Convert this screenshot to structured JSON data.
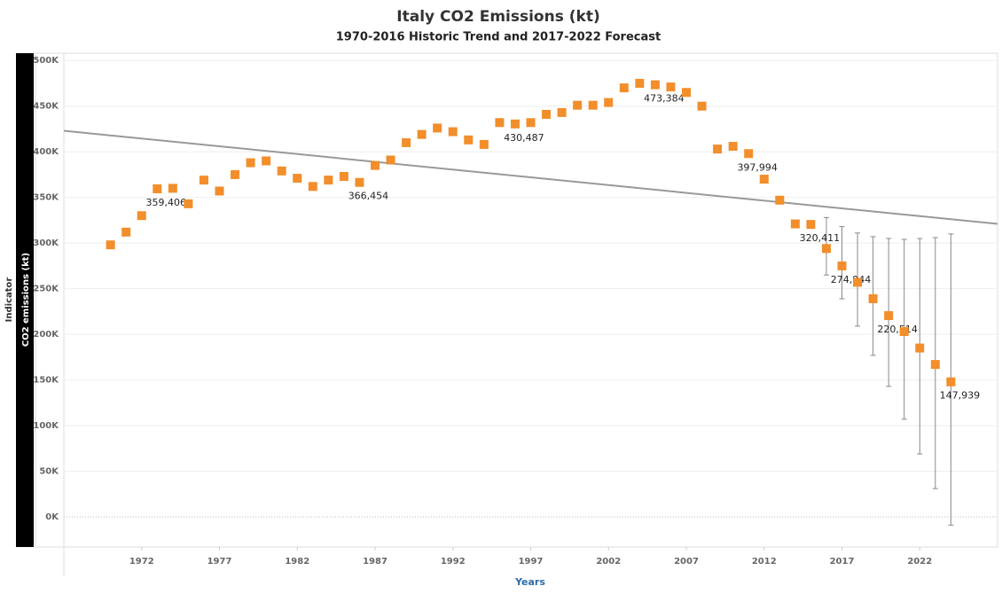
{
  "chart_data": {
    "type": "scatter",
    "title": "Italy CO2 Emissions (kt)",
    "subtitle": "1970-2016 Historic Trend and 2017-2022 Forecast",
    "x_label": "Years",
    "y_label": "CO2 emissions (kt)",
    "y_header": "Indicator",
    "xlim": [
      1967,
      2027
    ],
    "xticks": [
      1972,
      1977,
      1982,
      1987,
      1992,
      1997,
      2002,
      2007,
      2012,
      2017,
      2022
    ],
    "ylim": [
      -33000,
      508000
    ],
    "yticks": [
      {
        "value": 0,
        "label": "0K"
      },
      {
        "value": 50000,
        "label": "50K"
      },
      {
        "value": 100000,
        "label": "100K"
      },
      {
        "value": 150000,
        "label": "150K"
      },
      {
        "value": 200000,
        "label": "200K"
      },
      {
        "value": 250000,
        "label": "250K"
      },
      {
        "value": 300000,
        "label": "300K"
      },
      {
        "value": 350000,
        "label": "350K"
      },
      {
        "value": 400000,
        "label": "400K"
      },
      {
        "value": 450000,
        "label": "450K"
      },
      {
        "value": 500000,
        "label": "500K"
      }
    ],
    "grid": true,
    "color": "#f28e2b",
    "x": [
      1970,
      1971,
      1972,
      1973,
      1974,
      1975,
      1976,
      1977,
      1978,
      1979,
      1980,
      1981,
      1982,
      1983,
      1984,
      1985,
      1986,
      1987,
      1988,
      1989,
      1990,
      1991,
      1992,
      1993,
      1994,
      1995,
      1996,
      1997,
      1998,
      1999,
      2000,
      2001,
      2002,
      2003,
      2004,
      2005,
      2006,
      2007,
      2008,
      2009,
      2010,
      2011,
      2012,
      2013,
      2014,
      2015,
      2016,
      2017,
      2018,
      2019,
      2020,
      2021,
      2022,
      2023,
      2024
    ],
    "values": [
      298000,
      312000,
      330000,
      359406,
      360000,
      343000,
      369000,
      357000,
      375000,
      388000,
      390000,
      379000,
      371000,
      362000,
      369000,
      373000,
      366454,
      385000,
      391000,
      410000,
      419000,
      426000,
      422000,
      413000,
      408000,
      432000,
      430487,
      432000,
      441000,
      443000,
      451000,
      451000,
      454000,
      470000,
      475000,
      473384,
      471000,
      465000,
      450000,
      403000,
      406000,
      397994,
      370000,
      347000,
      321000,
      320411,
      294000,
      274944,
      257000,
      239000,
      220514,
      203000,
      185000,
      167000,
      147939
    ],
    "value_labels": [
      null,
      null,
      null,
      "359,406",
      null,
      null,
      null,
      null,
      null,
      null,
      null,
      null,
      null,
      null,
      null,
      null,
      "366,454",
      null,
      null,
      null,
      null,
      null,
      null,
      null,
      null,
      null,
      "430,487",
      null,
      null,
      null,
      null,
      null,
      null,
      null,
      null,
      "473,384",
      null,
      null,
      null,
      null,
      null,
      "397,994",
      null,
      null,
      null,
      "320,411",
      null,
      "274,944",
      null,
      null,
      "220,514",
      null,
      null,
      null,
      "147,939"
    ],
    "lower": [
      null,
      null,
      null,
      null,
      null,
      null,
      null,
      null,
      null,
      null,
      null,
      null,
      null,
      null,
      null,
      null,
      null,
      null,
      null,
      null,
      null,
      null,
      null,
      null,
      null,
      null,
      null,
      null,
      null,
      null,
      null,
      null,
      null,
      null,
      null,
      null,
      null,
      null,
      null,
      null,
      null,
      null,
      null,
      null,
      null,
      null,
      265000,
      239000,
      209000,
      177000,
      143000,
      107000,
      69000,
      31000,
      -9000
    ],
    "upper": [
      null,
      null,
      null,
      null,
      null,
      null,
      null,
      null,
      null,
      null,
      null,
      null,
      null,
      null,
      null,
      null,
      null,
      null,
      null,
      null,
      null,
      null,
      null,
      null,
      null,
      null,
      null,
      null,
      null,
      null,
      null,
      null,
      null,
      null,
      null,
      null,
      null,
      null,
      null,
      null,
      null,
      null,
      null,
      null,
      null,
      null,
      328000,
      318000,
      311000,
      307000,
      305000,
      304000,
      305000,
      306000,
      310000
    ],
    "trend": {
      "x": [
        1967,
        2027
      ],
      "values": [
        423000,
        321000
      ],
      "color": "#999999"
    }
  }
}
